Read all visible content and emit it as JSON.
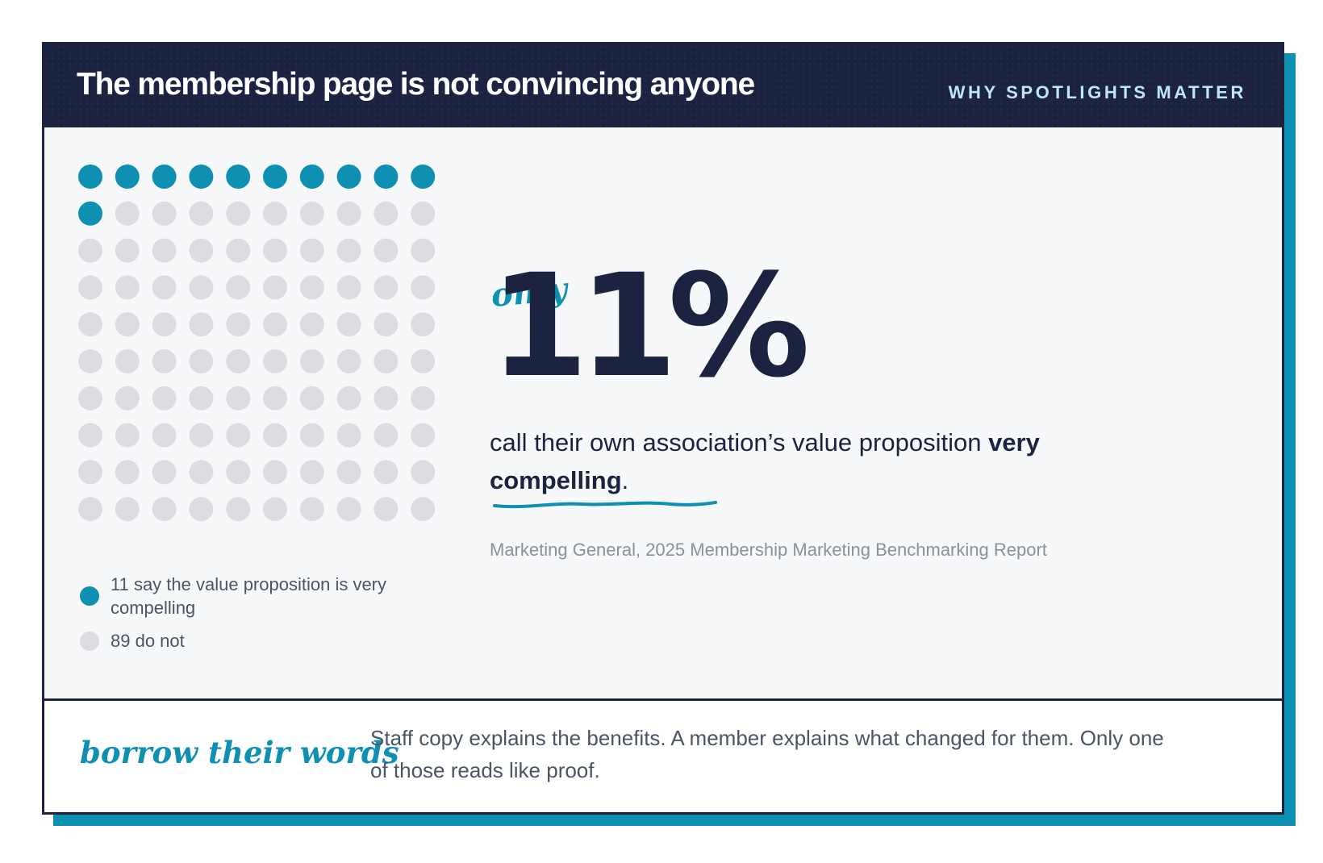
{
  "header": {
    "title": "The membership page is not convincing anyone",
    "kicker": "WHY SPOTLIGHTS MATTER"
  },
  "colors": {
    "accent": "#0e90b3",
    "navy": "#1b2340",
    "inactive_dot": "#dcdde1",
    "background": "#f7f8fa"
  },
  "chart_data": {
    "type": "waffle",
    "total": 100,
    "columns": 10,
    "rows": 10,
    "series": [
      {
        "name": "11 say the value proposition is very compelling",
        "value": 11,
        "color": "#0e90b3"
      },
      {
        "name": "89 do not",
        "value": 89,
        "color": "#dcdde1"
      }
    ]
  },
  "stat": {
    "accent_word": "only",
    "value": "11%",
    "statement_lead": "call their own association’s value proposition ",
    "statement_bold": "very compelling",
    "statement_end": ".",
    "source": "Marketing General, 2025 Membership Marketing Benchmarking Report"
  },
  "footer": {
    "accent": "borrow their words",
    "text": "Staff copy explains the benefits. A member explains what changed for them. Only one of those reads like proof."
  }
}
